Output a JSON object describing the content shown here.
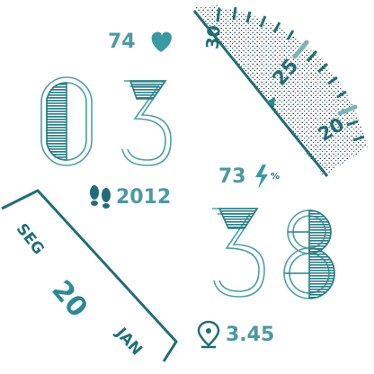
{
  "watchface": {
    "heart_rate": "74",
    "hour": "03",
    "minute": "38",
    "battery": "73",
    "battery_unit": "%",
    "steps": "2012",
    "distance": "3.45",
    "weekday": "SEG",
    "day": "20",
    "month": "JAN",
    "temperature_scale": [
      "30",
      "25",
      "20"
    ],
    "accent_color": "#3a8c94",
    "dark_color": "#1f6e76",
    "icons": [
      "heart-icon",
      "lightning-bolt-icon",
      "footsteps-icon",
      "location-pin-icon",
      "pointer-triangle-icon"
    ]
  }
}
